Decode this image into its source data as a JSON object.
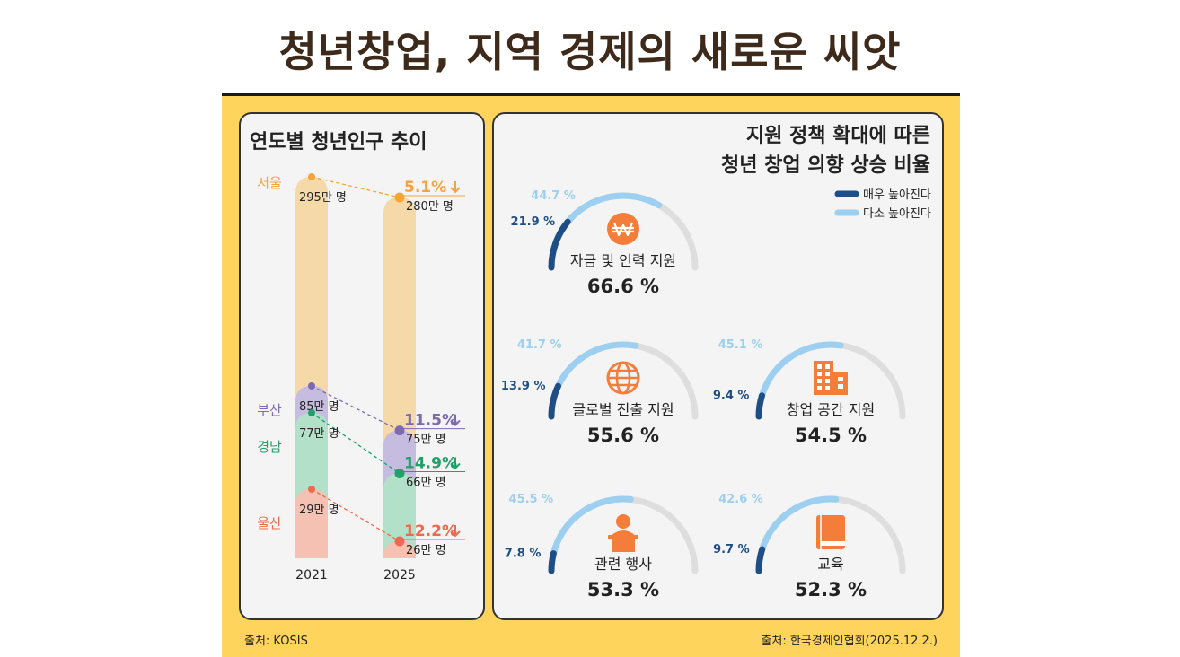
{
  "main_title": "청년창업, 지역 경제의 새로운 씨앗",
  "left_panel": {
    "title": "연도별 청년인구 추이",
    "source": "출처: KOSIS"
  },
  "right_panel": {
    "title_line1": "지원 정책 확대에 따른",
    "title_line2": "청년 창업 의향 상승 비율",
    "source": "출처: 한국경제인협회(2025.12.2.)"
  },
  "colors": {
    "frame": "#ffd45c",
    "dark_blue": "#1e4e86",
    "light_blue": "#9ccff0",
    "icon_orange": "#f47d3a",
    "gauge_track": "#dedede"
  },
  "chart_data": [
    {
      "type": "bar",
      "title": "연도별 청년인구 추이",
      "unit": "만 명",
      "categories": [
        "2021",
        "2025"
      ],
      "series": [
        {
          "name": "서울",
          "color": "#f5a33a",
          "values": [
            295,
            280
          ],
          "change": "5.1%",
          "label_2021": "295만 명",
          "label_2025": "280만 명"
        },
        {
          "name": "부산",
          "color": "#7e6ab0",
          "values": [
            85,
            75
          ],
          "change": "11.5%",
          "label_2021": "85만 명",
          "label_2025": "75만 명"
        },
        {
          "name": "경남",
          "color": "#22a06b",
          "values": [
            77,
            66
          ],
          "change": "14.9%",
          "label_2021": "77만 명",
          "label_2025": "66만 명"
        },
        {
          "name": "울산",
          "color": "#ee6a4c",
          "values": [
            29,
            26
          ],
          "change": "12.2%",
          "label_2021": "29만 명",
          "label_2025": "26만 명"
        }
      ]
    },
    {
      "type": "gauge",
      "title": "지원 정책 확대에 따른 청년 창업 의향 상승 비율",
      "legend": [
        "매우 높아진다",
        "다소 높아진다"
      ],
      "legend_position": "top-right",
      "items": [
        {
          "label": "자금 및 인력 지원",
          "icon": "won-coin-icon",
          "very": 21.9,
          "somewhat": 44.7,
          "total": 66.6,
          "very_text": "21.9 %",
          "somewhat_text": "44.7 %",
          "total_text": "66.6 %"
        },
        {
          "label": "글로벌 진출 지원",
          "icon": "globe-icon",
          "very": 13.9,
          "somewhat": 41.7,
          "total": 55.6,
          "very_text": "13.9 %",
          "somewhat_text": "41.7 %",
          "total_text": "55.6 %"
        },
        {
          "label": "창업 공간 지원",
          "icon": "building-icon",
          "very": 9.4,
          "somewhat": 45.1,
          "total": 54.5,
          "very_text": "9.4 %",
          "somewhat_text": "45.1 %",
          "total_text": "54.5 %"
        },
        {
          "label": "관련 행사",
          "icon": "presenter-icon",
          "very": 7.8,
          "somewhat": 45.5,
          "total": 53.3,
          "very_text": "7.8 %",
          "somewhat_text": "45.5 %",
          "total_text": "53.3 %"
        },
        {
          "label": "교육",
          "icon": "book-icon",
          "very": 9.7,
          "somewhat": 42.6,
          "total": 52.3,
          "very_text": "9.7 %",
          "somewhat_text": "42.6 %",
          "total_text": "52.3 %"
        }
      ]
    }
  ]
}
